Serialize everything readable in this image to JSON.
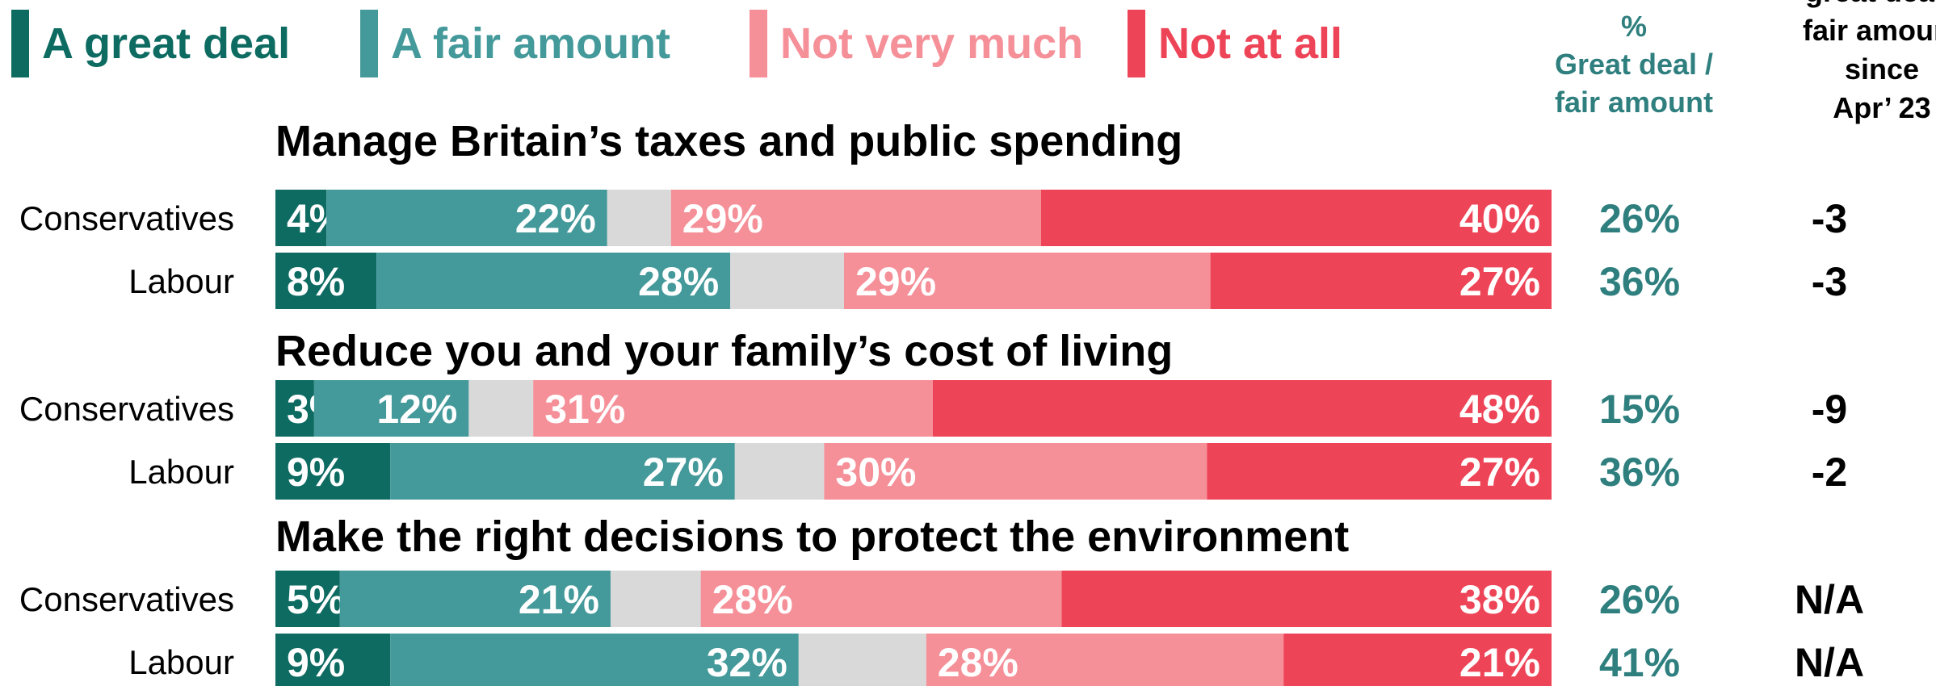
{
  "colors": {
    "great_deal": "#0d6b62",
    "fair_amount": "#44999a",
    "dont_know": "#d9d9d9",
    "not_very_much": "#f58f98",
    "not_at_all": "#ee4457",
    "pct_text": "#2f7f7f",
    "change_text": "#000000"
  },
  "headers": {
    "pct_header": [
      "%",
      "Great deal /",
      "fair amount"
    ],
    "change_header": [
      "great deal /",
      "fair amount",
      "since",
      "Apr’ 23"
    ]
  },
  "chart_data": {
    "type": "bar",
    "orientation": "horizontal",
    "stacked": true,
    "legend": [
      "A great deal",
      "A fair amount",
      "Not very much",
      "Not at all"
    ],
    "legend_position": "top",
    "groups": [
      {
        "title": "Manage Britain’s taxes and public spending",
        "rows": [
          {
            "label": "Conservatives",
            "values": [
              4,
              22,
              5,
              29,
              40
            ],
            "pct": "26%",
            "change": "-3"
          },
          {
            "label": "Labour",
            "values": [
              8,
              28,
              9,
              29,
              27
            ],
            "pct": "36%",
            "change": "-3"
          }
        ]
      },
      {
        "title": "Reduce you and your family’s cost of living",
        "rows": [
          {
            "label": "Conservatives",
            "values": [
              3,
              12,
              5,
              31,
              48
            ],
            "pct": "15%",
            "change": "-9"
          },
          {
            "label": "Labour",
            "values": [
              9,
              27,
              7,
              30,
              27
            ],
            "pct": "36%",
            "change": "-2"
          }
        ]
      },
      {
        "title": "Make the right decisions to protect the environment",
        "rows": [
          {
            "label": "Conservatives",
            "values": [
              5,
              21,
              7,
              28,
              38
            ],
            "pct": "26%",
            "change": "N/A"
          },
          {
            "label": "Labour",
            "values": [
              9,
              32,
              10,
              28,
              21
            ],
            "pct": "41%",
            "change": "N/A"
          }
        ]
      }
    ]
  }
}
